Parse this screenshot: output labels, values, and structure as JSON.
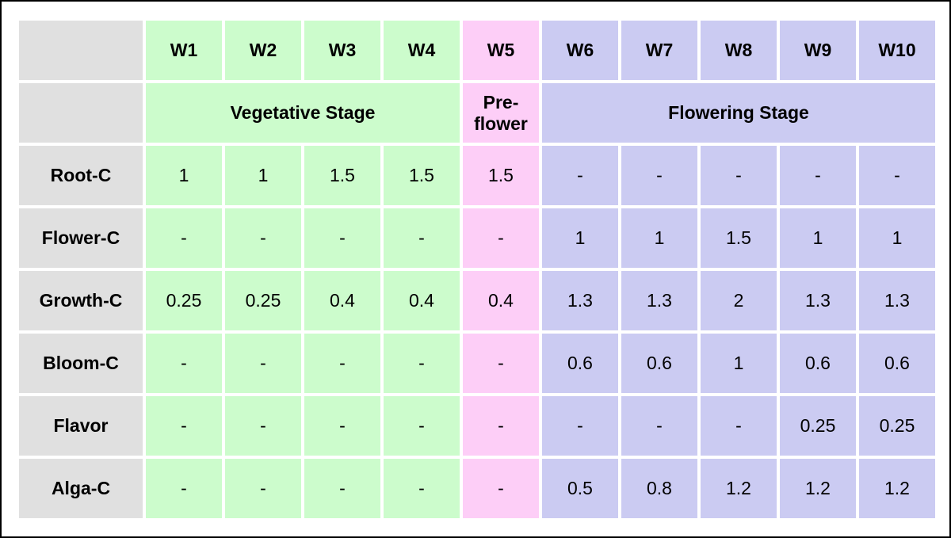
{
  "colors": {
    "page_bg": "#ffffff",
    "frame_border": "#000000",
    "label_bg": "#e0e0e0",
    "vegetative_bg": "#ccfccc",
    "preflower_bg": "#fdcef7",
    "flowering_bg": "#cbcbf2",
    "text": "#000000"
  },
  "chart_data": {
    "type": "table",
    "week_headers": [
      "W1",
      "W2",
      "W3",
      "W4",
      "W5",
      "W6",
      "W7",
      "W8",
      "W9",
      "W10"
    ],
    "stages": [
      {
        "label": "Vegetative Stage",
        "weeks": [
          "W1",
          "W2",
          "W3",
          "W4"
        ],
        "colspan": 4,
        "color": "#ccfccc"
      },
      {
        "label": "Pre-flower",
        "weeks": [
          "W5"
        ],
        "colspan": 1,
        "color": "#fdcef7"
      },
      {
        "label": "Flowering Stage",
        "weeks": [
          "W6",
          "W7",
          "W8",
          "W9",
          "W10"
        ],
        "colspan": 5,
        "color": "#cbcbf2"
      }
    ],
    "rows": [
      {
        "label": "Root-C",
        "values": [
          "1",
          "1",
          "1.5",
          "1.5",
          "1.5",
          "-",
          "-",
          "-",
          "-",
          "-"
        ]
      },
      {
        "label": "Flower-C",
        "values": [
          "-",
          "-",
          "-",
          "-",
          "-",
          "1",
          "1",
          "1.5",
          "1",
          "1"
        ]
      },
      {
        "label": "Growth-C",
        "values": [
          "0.25",
          "0.25",
          "0.4",
          "0.4",
          "0.4",
          "1.3",
          "1.3",
          "2",
          "1.3",
          "1.3"
        ]
      },
      {
        "label": "Bloom-C",
        "values": [
          "-",
          "-",
          "-",
          "-",
          "-",
          "0.6",
          "0.6",
          "1",
          "0.6",
          "0.6"
        ]
      },
      {
        "label": "Flavor",
        "values": [
          "-",
          "-",
          "-",
          "-",
          "-",
          "-",
          "-",
          "-",
          "0.25",
          "0.25"
        ]
      },
      {
        "label": "Alga-C",
        "values": [
          "-",
          "-",
          "-",
          "-",
          "-",
          "0.5",
          "0.8",
          "1.2",
          "1.2",
          "1.2"
        ]
      }
    ]
  }
}
